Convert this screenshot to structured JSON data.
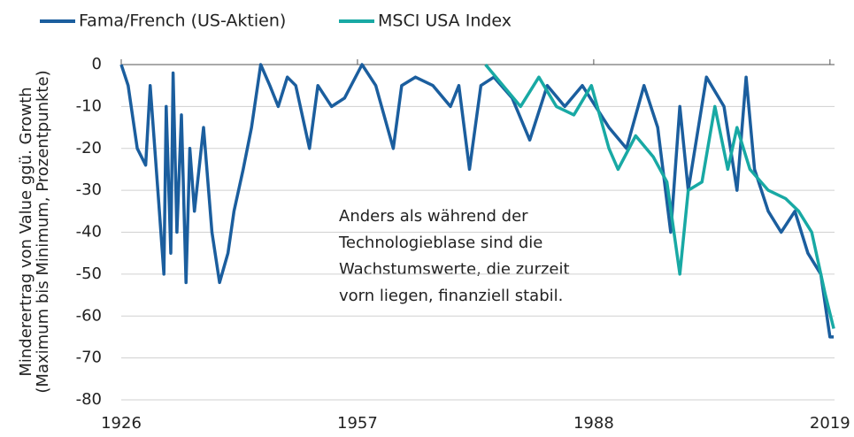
{
  "chart_data": {
    "type": "line",
    "y_label": [
      "Minderertrag von Value ggü. Growth",
      "(Maximum bis Minimum, Prozentpunkte)"
    ],
    "annotation": [
      "Anders als während der",
      "Technologieblase sind die",
      "Wachstumswerte, die zurzeit",
      "vorn liegen, finanziell stabil."
    ],
    "xlim": [
      1926,
      2019.6
    ],
    "xticks": [
      1926,
      1957,
      1988,
      2019
    ],
    "ylim": [
      -80,
      0
    ],
    "yticks": [
      0,
      -10,
      -20,
      -30,
      -40,
      -50,
      -60,
      -70,
      -80
    ],
    "grid": true,
    "series": [
      {
        "name": "Fama/French (US-Aktien)",
        "color": "#1b5e9e",
        "x": [
          1926,
          1926.9,
          1928.1,
          1929.2,
          1929.8,
          1931,
          1931.6,
          1931.9,
          1932.5,
          1932.8,
          1933.3,
          1933.9,
          1934.5,
          1935,
          1935.6,
          1936.8,
          1937.9,
          1938.9,
          1940,
          1940.8,
          1942,
          1943.1,
          1944.3,
          1945.5,
          1946.6,
          1947.8,
          1948.9,
          1950.7,
          1951.8,
          1953.6,
          1955.3,
          1957.6,
          1959.4,
          1961.7,
          1962.8,
          1964.6,
          1966.9,
          1969.2,
          1970.3,
          1971.7,
          1973.2,
          1974.9,
          1977.3,
          1979.6,
          1981.9,
          1984.2,
          1986.5,
          1990,
          1992.3,
          1994.6,
          1996.4,
          1998.1,
          1999.3,
          2000.4,
          2002.8,
          2005.1,
          2006.8,
          2008,
          2009.1,
          2010.9,
          2012.6,
          2014.4,
          2016.1,
          2017.8,
          2019,
          2019.5
        ],
        "values": [
          0,
          -5,
          -20,
          -24,
          -5,
          -35,
          -50,
          -10,
          -45,
          -2,
          -40,
          -12,
          -52,
          -20,
          -35,
          -15,
          -40,
          -52,
          -45,
          -35,
          -25,
          -15,
          0,
          -5,
          -10,
          -3,
          -5,
          -20,
          -5,
          -10,
          -8,
          0,
          -5,
          -20,
          -5,
          -3,
          -5,
          -10,
          -5,
          -25,
          -5,
          -3,
          -8,
          -18,
          -5,
          -10,
          -5,
          -15,
          -20,
          -5,
          -15,
          -40,
          -10,
          -30,
          -3,
          -10,
          -30,
          -3,
          -25,
          -35,
          -40,
          -35,
          -45,
          -50,
          -65,
          -65
        ]
      },
      {
        "name": "MSCI USA Index",
        "color": "#18a9a4",
        "x": [
          1973.8,
          1976.1,
          1978.4,
          1980.8,
          1983.1,
          1985.4,
          1987.7,
          1990,
          1991.2,
          1993.5,
          1995.8,
          1997.6,
          1999.3,
          2000.4,
          2002.2,
          2003.9,
          2005.6,
          2006.8,
          2008.5,
          2010.9,
          2013.2,
          2014.9,
          2016.6,
          2018.4,
          2019.5
        ],
        "values": [
          0,
          -5,
          -10,
          -3,
          -10,
          -12,
          -5,
          -20,
          -25,
          -17,
          -22,
          -28,
          -50,
          -30,
          -28,
          -10,
          -25,
          -15,
          -25,
          -30,
          -32,
          -35,
          -40,
          -55,
          -63
        ]
      }
    ]
  }
}
